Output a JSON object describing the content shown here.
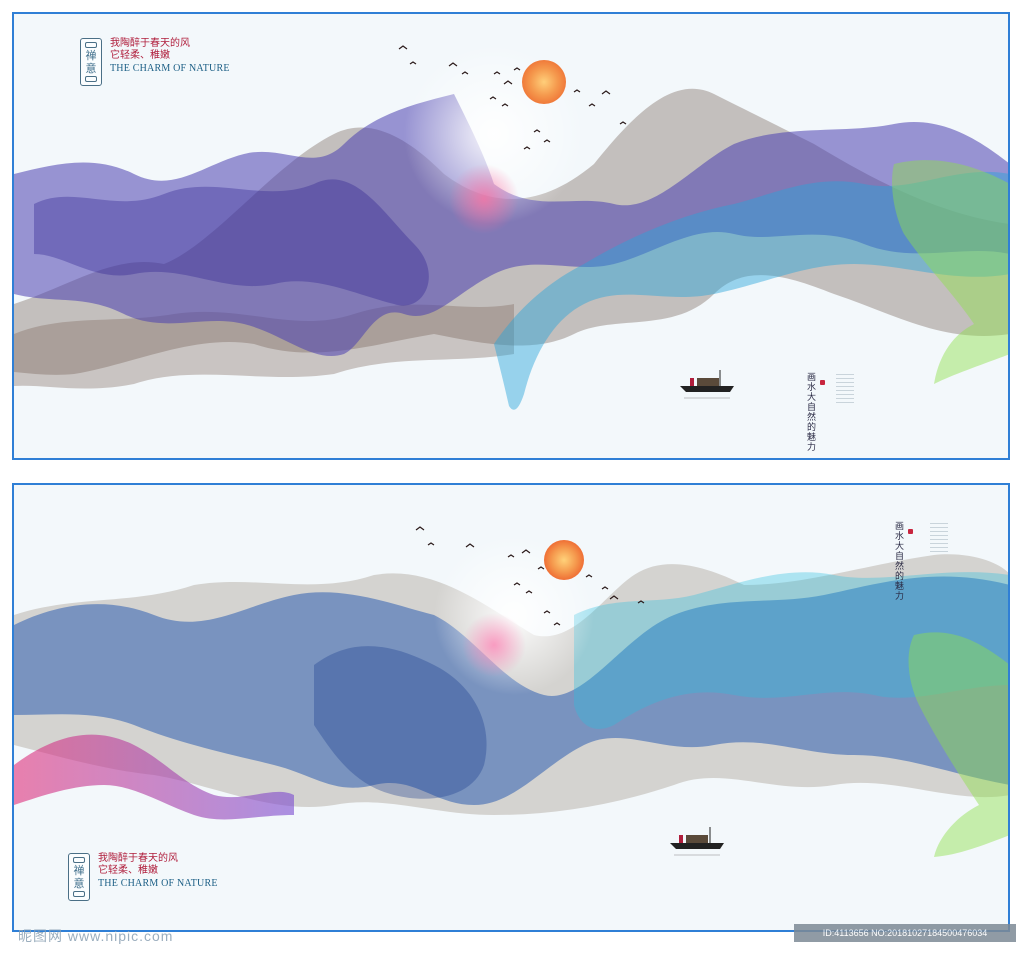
{
  "panel_top": {
    "logo": {
      "seal_chars": [
        "禅",
        "意"
      ],
      "poem_line1": "我陶醉于春天的风",
      "poem_line2": "它轻柔、稚嫩",
      "english_title": "THE CHARM OF NATURE"
    },
    "vertical_title": "画水大自然的魅力"
  },
  "panel_bottom": {
    "logo": {
      "seal_chars": [
        "禅",
        "意"
      ],
      "poem_line1": "我陶醉于春天的风",
      "poem_line2": "它轻柔、稚嫩",
      "english_title": "THE CHARM OF NATURE"
    },
    "vertical_title": "画水大自然的魅力"
  },
  "watermark": {
    "left_text": "昵图网 www.nipic.com",
    "right_text": "ID:4113656 NO:20181027184500476034"
  },
  "colors": {
    "border": "#2f7fd6",
    "sun": "#f07a3a",
    "seal_red": "#b01e3c",
    "title_blue": "#1c5f86"
  }
}
